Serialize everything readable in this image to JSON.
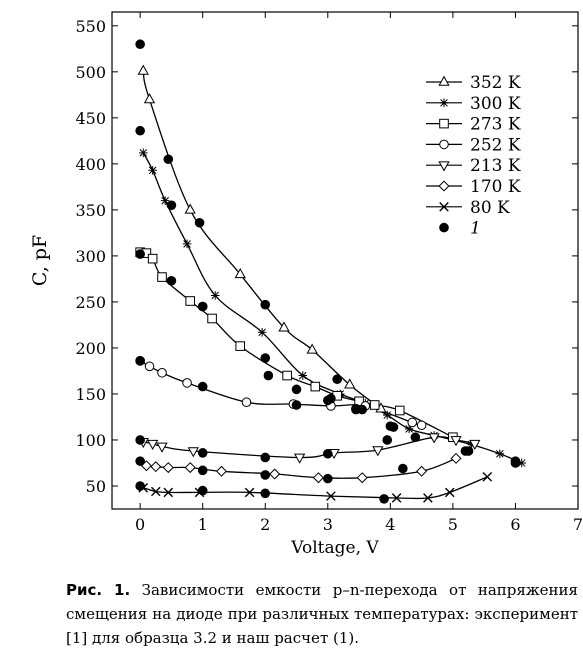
{
  "chart_data": {
    "type": "scatter",
    "xlabel": "Voltage, V",
    "ylabel": "C, pF",
    "xlim": [
      -0.45,
      7
    ],
    "ylim": [
      25,
      565
    ],
    "xticks": [
      0,
      1,
      2,
      3,
      4,
      5,
      6,
      7
    ],
    "yticks": [
      50,
      100,
      150,
      200,
      250,
      300,
      350,
      400,
      450,
      500,
      550
    ],
    "grid": false,
    "legend_position": "top-right",
    "series": [
      {
        "name": "352 K",
        "marker": "triangle-up",
        "x": [
          0.05,
          0.15,
          0.8,
          1.6,
          2.3,
          2.75,
          3.35,
          3.85
        ],
        "y": [
          501,
          470,
          350,
          280,
          222,
          198,
          160,
          134
        ]
      },
      {
        "name": "300 K",
        "marker": "star",
        "x": [
          0.05,
          0.2,
          0.4,
          0.75,
          1.2,
          1.95,
          2.6,
          3.2,
          3.6,
          3.95,
          4.3,
          4.7,
          5.3,
          5.75,
          6.1
        ],
        "y": [
          412,
          393,
          360,
          313,
          257,
          217,
          170,
          150,
          140,
          127,
          112,
          105,
          95,
          85,
          75
        ]
      },
      {
        "name": "273 K",
        "marker": "square",
        "x": [
          0.0,
          0.1,
          0.2,
          0.35,
          0.8,
          1.15,
          1.6,
          2.35,
          2.8,
          3.15,
          3.5,
          3.75,
          4.15,
          5.0
        ],
        "y": [
          304,
          303,
          297,
          277,
          251,
          232,
          202,
          170,
          158,
          148,
          142,
          138,
          132,
          103
        ]
      },
      {
        "name": "252 K",
        "marker": "circle",
        "x": [
          0.0,
          0.15,
          0.35,
          0.75,
          1.7,
          2.45,
          3.05,
          3.6,
          4.35,
          4.5
        ],
        "y": [
          186,
          180,
          173,
          162,
          141,
          139,
          137,
          137,
          119,
          116
        ]
      },
      {
        "name": "213 K",
        "marker": "triangle-down",
        "x": [
          0.05,
          0.2,
          0.35,
          0.85,
          2.55,
          3.1,
          3.8,
          4.7,
          5.05,
          5.35
        ],
        "y": [
          98,
          96,
          93,
          88,
          81,
          86,
          89,
          103,
          100,
          96
        ]
      },
      {
        "name": "170 K",
        "marker": "diamond",
        "x": [
          0.1,
          0.25,
          0.45,
          0.8,
          1.3,
          2.15,
          2.85,
          3.55,
          4.5,
          5.05
        ],
        "y": [
          72,
          71,
          70,
          70,
          66,
          63,
          59,
          59,
          66,
          80
        ]
      },
      {
        "name": "80 K",
        "marker": "x",
        "x": [
          0.05,
          0.25,
          0.45,
          0.95,
          1.75,
          3.05,
          4.1,
          4.6,
          4.95,
          5.55
        ],
        "y": [
          48,
          44,
          43,
          43,
          43,
          39,
          37,
          37,
          43,
          60
        ]
      },
      {
        "name": "1",
        "marker": "dot",
        "x": [
          0,
          0.45,
          0.95,
          2.0,
          3.15,
          4.0,
          0,
          0.5,
          1.0,
          2.0,
          3.05,
          3.55,
          0,
          0.5,
          1.0,
          2.05,
          2.5,
          3.0,
          3.45,
          0,
          1.0,
          2.5,
          3.45,
          4.05,
          0,
          1.0,
          2.0,
          3.0,
          3.95,
          4.4,
          5.2,
          0,
          1.0,
          2.0,
          3.0,
          4.2,
          5.25,
          6.0,
          0,
          1.0,
          2.0,
          3.9,
          6.0
        ],
        "y": [
          530,
          405,
          336,
          247,
          166,
          115,
          436,
          355,
          245,
          189,
          145,
          133,
          302,
          273,
          245,
          170,
          155,
          143,
          134,
          186,
          158,
          138,
          133,
          114,
          100,
          86,
          81,
          85,
          100,
          103,
          88,
          77,
          67,
          62,
          58,
          69,
          88,
          77,
          50,
          45,
          42,
          36,
          75
        ]
      }
    ]
  },
  "caption": {
    "figure_label": "Рис. 1.",
    "text": " Зависимости емкости p–n-перехода от напряжения смещения на диоде при различных температурах: эксперимент [1] для образца 3.2 и наш расчет (1)."
  }
}
